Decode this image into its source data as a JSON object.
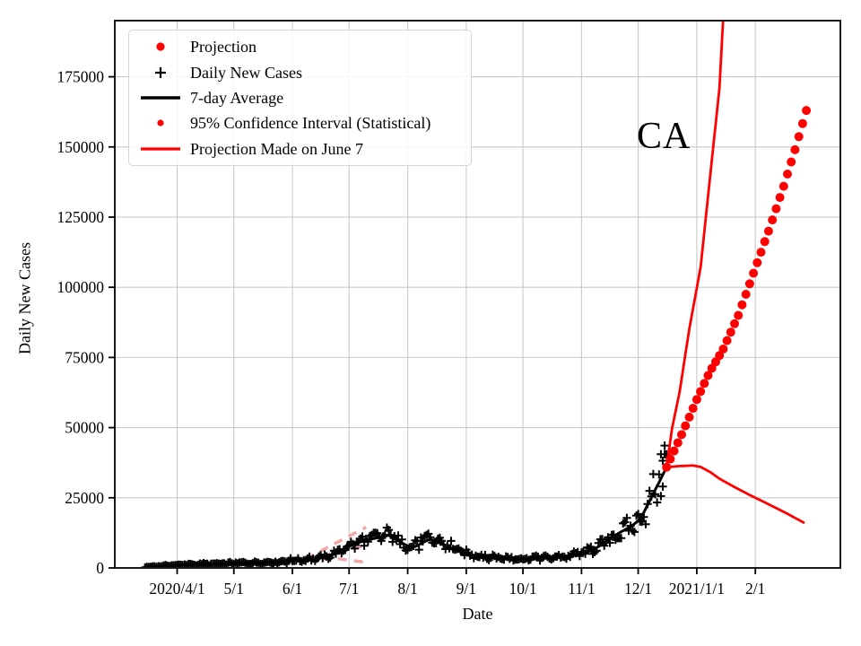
{
  "chart_data": {
    "type": "line",
    "title": "",
    "xlabel": "Date",
    "ylabel": "Daily New Cases",
    "annotation": {
      "text": "CA"
    },
    "x_unit": "days_since_2020-01-01",
    "xlim": [
      58,
      442
    ],
    "ylim": [
      0,
      195000
    ],
    "grid": true,
    "x_ticks": [
      {
        "day": 91,
        "label": "2020/4/1"
      },
      {
        "day": 121,
        "label": "5/1"
      },
      {
        "day": 152,
        "label": "6/1"
      },
      {
        "day": 182,
        "label": "7/1"
      },
      {
        "day": 213,
        "label": "8/1"
      },
      {
        "day": 244,
        "label": "9/1"
      },
      {
        "day": 274,
        "label": "10/1"
      },
      {
        "day": 305,
        "label": "11/1"
      },
      {
        "day": 335,
        "label": "12/1"
      },
      {
        "day": 366,
        "label": "2021/1/1"
      },
      {
        "day": 397,
        "label": "2/1"
      }
    ],
    "y_ticks": [
      {
        "value": 0,
        "label": "0"
      },
      {
        "value": 25000,
        "label": "25000"
      },
      {
        "value": 50000,
        "label": "50000"
      },
      {
        "value": 75000,
        "label": "75000"
      },
      {
        "value": 100000,
        "label": "100000"
      },
      {
        "value": 125000,
        "label": "125000"
      },
      {
        "value": 150000,
        "label": "150000"
      },
      {
        "value": 175000,
        "label": "175000"
      }
    ],
    "colors": {
      "projection": "#ff0000",
      "confidence": "#ff0000",
      "daily_cases": "#000000",
      "average": "#000000",
      "june7_projection": "#f5a6a6",
      "grid": "#c9c9c9",
      "spine": "#1a1a1a"
    },
    "legend": {
      "position": "upper-left",
      "entries": [
        {
          "marker": "red-dot-large",
          "label": "Projection"
        },
        {
          "marker": "black-plus",
          "label": "Daily New Cases"
        },
        {
          "marker": "black-line",
          "label": "7-day Average"
        },
        {
          "marker": "red-dot-small",
          "label": "95% Confidence Interval (Statistical)"
        },
        {
          "marker": "red-line",
          "label": "Projection Made on June 7"
        }
      ]
    },
    "series": [
      {
        "name": "7-day Average",
        "type": "line",
        "color": "#000000",
        "width": 3,
        "anchors": [
          [
            74,
            200
          ],
          [
            80,
            500
          ],
          [
            85,
            700
          ],
          [
            91,
            1000
          ],
          [
            98,
            1200
          ],
          [
            106,
            1300
          ],
          [
            113,
            1450
          ],
          [
            121,
            1650
          ],
          [
            128,
            1800
          ],
          [
            135,
            1950
          ],
          [
            142,
            2100
          ],
          [
            148,
            2300
          ],
          [
            152,
            2550
          ],
          [
            157,
            2850
          ],
          [
            162,
            3100
          ],
          [
            166,
            3500
          ],
          [
            171,
            4200
          ],
          [
            176,
            5600
          ],
          [
            180,
            7100
          ],
          [
            182,
            8000
          ],
          [
            186,
            8900
          ],
          [
            191,
            9800
          ],
          [
            196,
            10600
          ],
          [
            200,
            11300
          ],
          [
            203,
            11600
          ],
          [
            206,
            10600
          ],
          [
            209,
            9300
          ],
          [
            212,
            8200
          ],
          [
            215,
            7300
          ],
          [
            218,
            7900
          ],
          [
            222,
            9400
          ],
          [
            225,
            10300
          ],
          [
            229,
            9200
          ],
          [
            233,
            8000
          ],
          [
            237,
            6800
          ],
          [
            241,
            5800
          ],
          [
            244,
            5100
          ],
          [
            249,
            4400
          ],
          [
            254,
            4000
          ],
          [
            259,
            3700
          ],
          [
            264,
            3500
          ],
          [
            269,
            3300
          ],
          [
            274,
            3300
          ],
          [
            279,
            3500
          ],
          [
            284,
            3700
          ],
          [
            288,
            3500
          ],
          [
            292,
            3700
          ],
          [
            297,
            4100
          ],
          [
            301,
            4500
          ],
          [
            305,
            5000
          ],
          [
            309,
            5900
          ],
          [
            313,
            7200
          ],
          [
            317,
            8900
          ],
          [
            321,
            10800
          ],
          [
            325,
            12500
          ],
          [
            329,
            14000
          ],
          [
            332,
            15200
          ],
          [
            335,
            16800
          ],
          [
            338,
            19800
          ],
          [
            341,
            23800
          ],
          [
            344,
            27800
          ],
          [
            347,
            31800
          ],
          [
            350,
            35900
          ]
        ]
      },
      {
        "name": "Daily New Cases",
        "type": "plus-scatter",
        "color": "#000000",
        "derived_from": "7-day Average",
        "day_range": [
          74,
          350
        ],
        "noise": {
          "relative": 0.2,
          "weekly": 0.1,
          "absolute": 120,
          "spike_chance": 0.06,
          "spike_gain": 1.22,
          "cap": 44500
        },
        "extra_points": [
          [
            347,
            40500
          ],
          [
            349,
            43600
          ],
          [
            348,
            38200
          ]
        ]
      },
      {
        "name": "Projection",
        "type": "dot-scatter",
        "color": "#ff0000",
        "dot_radius": 5,
        "dot_every_days": 2,
        "anchors": [
          [
            350,
            35900
          ],
          [
            358,
            47500
          ],
          [
            366,
            60000
          ],
          [
            373,
            70000
          ],
          [
            380,
            78000
          ],
          [
            388,
            90000
          ],
          [
            396,
            105000
          ],
          [
            404,
            120000
          ],
          [
            412,
            136000
          ],
          [
            418,
            149000
          ],
          [
            424,
            163000
          ]
        ]
      },
      {
        "name": "95% Confidence Interval upper",
        "type": "line",
        "color": "#ff0000",
        "width": 2.8,
        "anchors": [
          [
            350,
            35900
          ],
          [
            353,
            50000
          ],
          [
            357,
            63000
          ],
          [
            362,
            85000
          ],
          [
            368,
            107000
          ],
          [
            373,
            139000
          ],
          [
            378,
            171000
          ],
          [
            380,
            196000
          ],
          [
            381,
            212000
          ]
        ]
      },
      {
        "name": "95% Confidence Interval lower",
        "type": "line",
        "color": "#ff0000",
        "width": 2.8,
        "anchors": [
          [
            350,
            35900
          ],
          [
            357,
            36300
          ],
          [
            364,
            36500
          ],
          [
            368,
            36000
          ],
          [
            373,
            34200
          ],
          [
            378,
            31800
          ],
          [
            386,
            28800
          ],
          [
            394,
            26000
          ],
          [
            404,
            22700
          ],
          [
            414,
            19300
          ],
          [
            423,
            16000
          ]
        ]
      },
      {
        "name": "Projection Made on June 7 upper",
        "type": "dashed-line",
        "color": "#f5a6a6",
        "width": 3.5,
        "anchors": [
          [
            159,
            3200
          ],
          [
            191,
            14500
          ]
        ]
      },
      {
        "name": "Projection Made on June 7 mid",
        "type": "dashed-line",
        "color": "#f5a6a6",
        "width": 3.5,
        "anchors": [
          [
            159,
            3000
          ],
          [
            192,
            8200
          ]
        ]
      },
      {
        "name": "Projection Made on June 7 lower",
        "type": "dashed-line",
        "color": "#f5a6a6",
        "width": 3.5,
        "anchors": [
          [
            159,
            2800
          ],
          [
            176,
            3300
          ],
          [
            190,
            2100
          ]
        ]
      }
    ]
  }
}
